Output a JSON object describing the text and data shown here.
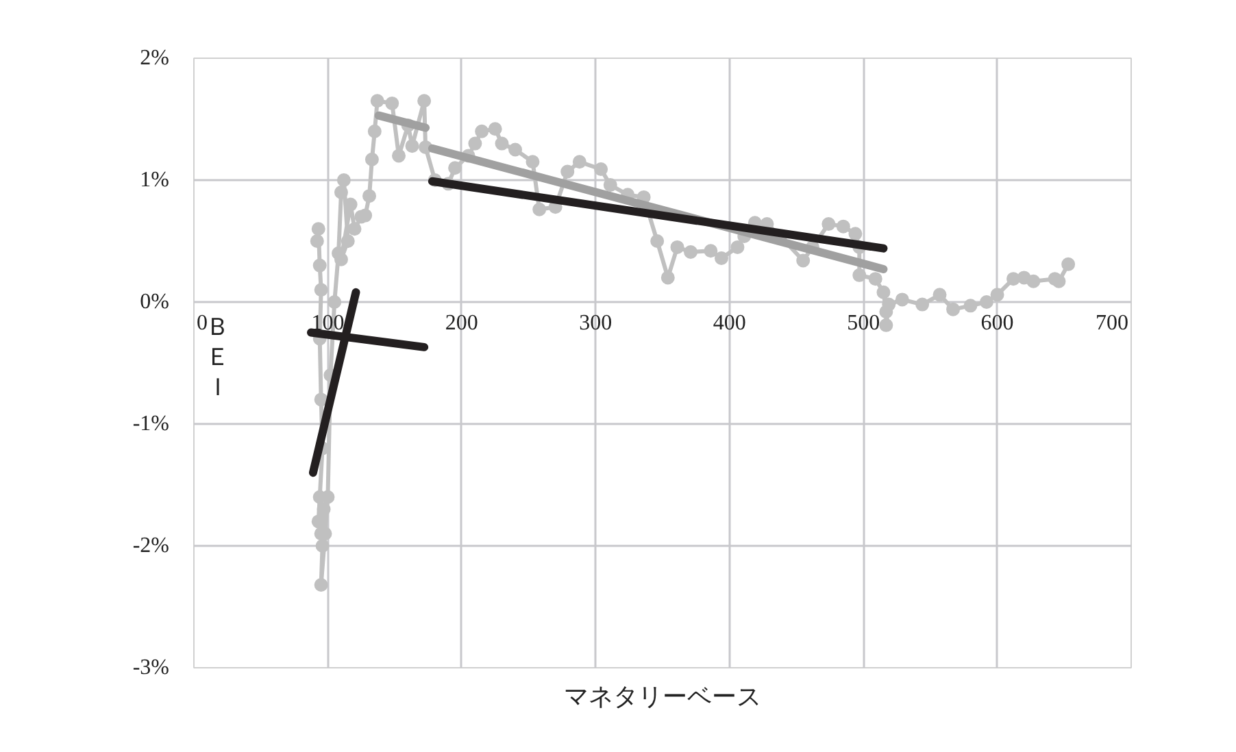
{
  "chart_data": {
    "type": "line",
    "xlabel": "マネタリーベース",
    "ylabel": "ＢＥＩ",
    "xlim": [
      0,
      700
    ],
    "xticks": [
      0,
      100,
      200,
      300,
      400,
      500,
      600,
      700
    ],
    "ylim": [
      -3,
      2
    ],
    "yticks": [
      {
        "value": -3,
        "label": "-3%"
      },
      {
        "value": -2,
        "label": "-2%"
      },
      {
        "value": -1,
        "label": "-1%"
      },
      {
        "value": 0,
        "label": "0%"
      },
      {
        "value": 1,
        "label": "1%"
      },
      {
        "value": 2,
        "label": "2%"
      }
    ],
    "grid": true,
    "series": [
      {
        "color": "#c0c0c0",
        "marker": "circle",
        "x": [
          92,
          93,
          94,
          95,
          94,
          95,
          96,
          94,
          93,
          95,
          97,
          96,
          95,
          98,
          100,
          102,
          105,
          108,
          110,
          112,
          115,
          110,
          117,
          120,
          125,
          128,
          131,
          133,
          135,
          137,
          148,
          153,
          160,
          163,
          172,
          173,
          180,
          190,
          195,
          205,
          210,
          215,
          225,
          230,
          240,
          253,
          258,
          270,
          279,
          288,
          304,
          311,
          324,
          336,
          346,
          354,
          361,
          371,
          386,
          394,
          406,
          411,
          419,
          428,
          438,
          455,
          462,
          474,
          485,
          494,
          497,
          497,
          509,
          515,
          517,
          517,
          519,
          529,
          544,
          557,
          567,
          580,
          592,
          600,
          612,
          620,
          627,
          643,
          646,
          653
        ],
        "values": [
          0.5,
          0.6,
          0.3,
          0.1,
          -0.3,
          -0.8,
          -1.2,
          -1.6,
          -1.8,
          -1.9,
          -1.7,
          -2.0,
          -2.32,
          -1.9,
          -1.6,
          -0.6,
          0.0,
          0.4,
          0.9,
          1.0,
          0.5,
          0.35,
          0.8,
          0.6,
          0.7,
          0.71,
          0.87,
          1.17,
          1.4,
          1.65,
          1.63,
          1.2,
          1.45,
          1.28,
          1.65,
          1.27,
          1.0,
          0.97,
          1.1,
          1.2,
          1.3,
          1.4,
          1.42,
          1.3,
          1.25,
          1.15,
          0.76,
          0.78,
          1.07,
          1.15,
          1.09,
          0.96,
          0.88,
          0.86,
          0.5,
          0.2,
          0.45,
          0.41,
          0.42,
          0.36,
          0.45,
          0.54,
          0.65,
          0.64,
          0.54,
          0.34,
          0.45,
          0.64,
          0.62,
          0.56,
          0.45,
          0.22,
          0.19,
          0.08,
          -0.08,
          -0.19,
          -0.02,
          0.02,
          -0.02,
          0.06,
          -0.06,
          -0.03,
          0.0,
          0.06,
          0.19,
          0.2,
          0.17,
          0.19,
          0.17,
          0.31
        ]
      },
      {
        "type": "line",
        "marker": "none",
        "color": "#231f20",
        "x": [
          87.5,
          172
        ],
        "values": [
          -0.25,
          -0.37
        ]
      },
      {
        "type": "line",
        "marker": "none",
        "color": "#231f20",
        "x": [
          89,
          121
        ],
        "values": [
          -1.4,
          0.08
        ]
      },
      {
        "type": "line",
        "marker": "none",
        "color": "#a0a0a0",
        "x": [
          138,
          173
        ],
        "values": [
          1.53,
          1.43
        ]
      },
      {
        "type": "line",
        "marker": "none",
        "color": "#a0a0a0",
        "x": [
          178,
          515
        ],
        "values": [
          1.26,
          0.27
        ]
      },
      {
        "type": "line",
        "marker": "none",
        "color": "#231f20",
        "x": [
          178,
          515
        ],
        "values": [
          0.99,
          0.44
        ]
      }
    ]
  }
}
